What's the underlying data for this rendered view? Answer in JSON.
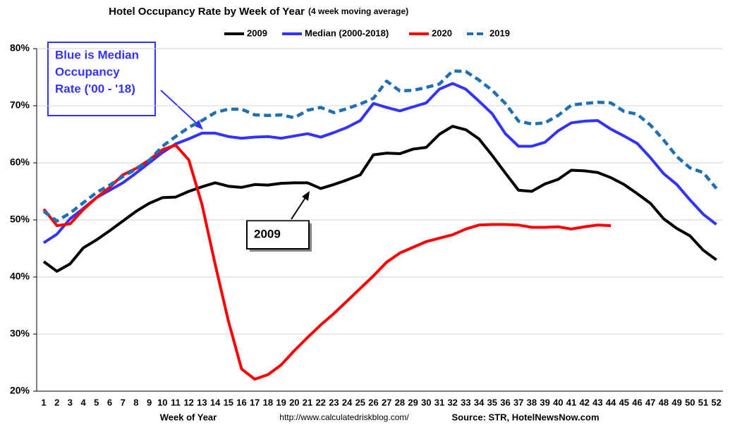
{
  "chart_data": {
    "type": "line",
    "title": "Hotel Occupancy Rate by  Week of Year",
    "subtitle": "(4 week moving average)",
    "x_label": "Week of Year",
    "url": "http://www.calculatedriskblog.com/",
    "source": "Source: STR, HotelNewsNow.com",
    "annotations": [
      {
        "lines": [
          "Blue is Median",
          "Occupancy",
          "Rate ('00 - '18)"
        ],
        "color": "#3333ff"
      },
      {
        "lines": [
          "2009"
        ],
        "color": "#000000"
      }
    ],
    "categories": [
      "1",
      "2",
      "3",
      "4",
      "5",
      "6",
      "7",
      "8",
      "9",
      "10",
      "11",
      "12",
      "13",
      "14",
      "15",
      "16",
      "17",
      "18",
      "19",
      "20",
      "21",
      "22",
      "23",
      "24",
      "25",
      "26",
      "27",
      "28",
      "29",
      "30",
      "31",
      "32",
      "33",
      "34",
      "35",
      "36",
      "37",
      "38",
      "39",
      "40",
      "41",
      "42",
      "43",
      "44",
      "45",
      "46",
      "47",
      "48",
      "49",
      "50",
      "51",
      "52"
    ],
    "ylim": [
      20,
      80
    ],
    "yticks": [
      {
        "value": 20,
        "label": "20%"
      },
      {
        "value": 30,
        "label": "30%"
      },
      {
        "value": 40,
        "label": "40%"
      },
      {
        "value": 50,
        "label": "50%"
      },
      {
        "value": 60,
        "label": "60%"
      },
      {
        "value": 70,
        "label": "70%"
      },
      {
        "value": 80,
        "label": "80%"
      }
    ],
    "grid": true,
    "legend": "top",
    "series": [
      {
        "name": "2009",
        "color": "#000000",
        "dashed": false,
        "values": [
          42.7,
          41,
          42.3,
          45.1,
          46.5,
          48.1,
          49.8,
          51.5,
          52.9,
          53.9,
          54,
          55,
          55.8,
          56.5,
          55.9,
          55.7,
          56.2,
          56.1,
          56.4,
          56.5,
          56.5,
          55.5,
          56.2,
          57,
          57.9,
          61.4,
          61.7,
          61.6,
          62.4,
          62.7,
          65,
          66.4,
          65.8,
          64.2,
          61.3,
          58.2,
          55.2,
          55,
          56.3,
          57.1,
          58.7,
          58.6,
          58.3,
          57.4,
          56.2,
          54.6,
          52.9,
          50.2,
          48.5,
          47.2,
          44.7,
          43
        ]
      },
      {
        "name": "Median (2000-2018)",
        "color": "#3333ff",
        "dashed": false,
        "values": [
          46,
          47.5,
          50.2,
          52,
          53.9,
          55.2,
          56.5,
          58.2,
          60,
          61.8,
          63.3,
          64.2,
          65.2,
          65.2,
          64.6,
          64.3,
          64.5,
          64.6,
          64.3,
          64.7,
          65.1,
          64.5,
          65.3,
          66.2,
          67.4,
          70.4,
          69.7,
          69.1,
          69.8,
          70.5,
          72.9,
          73.9,
          72.9,
          70.8,
          68.6,
          65.1,
          62.9,
          62.9,
          63.6,
          65.6,
          67,
          67.3,
          67.4,
          65.9,
          64.7,
          63.4,
          60.9,
          58.1,
          56.2,
          53.5,
          51,
          49.2
        ]
      },
      {
        "name": "2020",
        "color": "#ff0000",
        "dashed": false,
        "values": [
          51.9,
          49,
          49.3,
          51.8,
          53.9,
          55.7,
          57.9,
          59,
          60.5,
          62.3,
          63.1,
          60.5,
          52.7,
          42.2,
          32.3,
          23.9,
          22.1,
          22.9,
          24.6,
          27.1,
          29.4,
          31.6,
          33.6,
          35.8,
          38,
          40.2,
          42.6,
          44.2,
          45.2,
          46.2,
          46.8,
          47.4,
          48.4,
          49.1,
          49.2,
          49.2,
          49.1,
          48.7,
          48.7,
          48.8,
          48.4,
          48.8,
          49.1,
          49,
          null,
          null,
          null,
          null,
          null,
          null,
          null,
          null
        ]
      },
      {
        "name": "2019",
        "color": "#1f6fb4",
        "dashed": true,
        "values": [
          51.5,
          49.8,
          51.2,
          53,
          54.8,
          56.1,
          57.6,
          58.9,
          60.4,
          62.9,
          64.6,
          66.2,
          67.4,
          68.8,
          69.4,
          69.4,
          68.4,
          68.3,
          68.4,
          67.9,
          69.2,
          69.7,
          68.8,
          69.5,
          70.3,
          71.3,
          74.3,
          72.6,
          72.7,
          73.2,
          73.8,
          76.1,
          76,
          74.5,
          72.7,
          70.4,
          67.3,
          66.8,
          67,
          68.3,
          70.1,
          70.4,
          70.6,
          70.5,
          69,
          68.5,
          66.6,
          64,
          61.1,
          59.1,
          58.3,
          55.5
        ]
      }
    ]
  }
}
